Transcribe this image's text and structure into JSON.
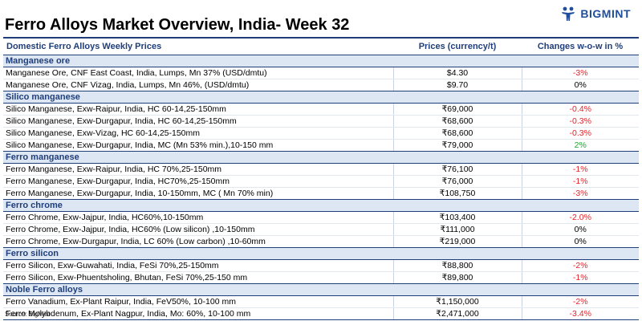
{
  "brand": {
    "name": "BIGMINT",
    "icon": "people-icon",
    "color": "#1f4e9c"
  },
  "title": "Ferro Alloys Market Overview, India- Week 32",
  "table": {
    "headers": {
      "product": "Domestic Ferro Alloys Weekly Prices",
      "price": "Prices (currency/t)",
      "change": "Changes w-o-w in %"
    },
    "groups": [
      {
        "name": "Manganese ore",
        "rows": [
          {
            "product": "Manganese Ore, CNF East Coast, India, Lumps, Mn 37% (USD/dmtu)",
            "price": "$4.30",
            "change": "-3%",
            "trend": "neg"
          },
          {
            "product": "Manganese Ore, CNF Vizag, India, Lumps, Mn 46%, (USD/dmtu)",
            "price": "$9.70",
            "change": "0%",
            "trend": "flat"
          }
        ]
      },
      {
        "name": "Silico manganese",
        "rows": [
          {
            "product": "Silico Manganese, Exw-Raipur, India, HC 60-14,25-150mm",
            "price": "₹69,000",
            "change": "-0.4%",
            "trend": "neg"
          },
          {
            "product": "Silico Manganese, Exw-Durgapur, India, HC 60-14,25-150mm",
            "price": "₹68,600",
            "change": "-0.3%",
            "trend": "neg"
          },
          {
            "product": "Silico Manganese, Exw-Vizag, HC 60-14,25-150mm",
            "price": "₹68,600",
            "change": "-0.3%",
            "trend": "neg"
          },
          {
            "product": "Silico Manganese, Exw-Durgapur, India, MC (Mn 53% min.),10-150 mm",
            "price": "₹79,000",
            "change": "2%",
            "trend": "pos"
          }
        ]
      },
      {
        "name": "Ferro manganese",
        "rows": [
          {
            "product": "Ferro Manganese, Exw-Raipur, India, HC 70%,25-150mm",
            "price": "₹76,100",
            "change": "-1%",
            "trend": "neg"
          },
          {
            "product": "Ferro Manganese, Exw-Durgapur, India, HC70%,25-150mm",
            "price": "₹76,000",
            "change": "-1%",
            "trend": "neg"
          },
          {
            "product": "Ferro Manganese, Exw-Durgapur, India, 10-150mm, MC ( Mn 70% min)",
            "price": "₹108,750",
            "change": "-3%",
            "trend": "neg"
          }
        ]
      },
      {
        "name": "Ferro chrome",
        "rows": [
          {
            "product": "Ferro Chrome, Exw-Jajpur, India, HC60%,10-150mm",
            "price": "₹103,400",
            "change": "-2.0%",
            "trend": "neg"
          },
          {
            "product": "Ferro Chrome, Exw-Jajpur, India, HC60% (Low silicon) ,10-150mm",
            "price": "₹111,000",
            "change": "0%",
            "trend": "flat"
          },
          {
            "product": "Ferro Chrome, Exw-Durgapur, India, LC 60% (Low carbon) ,10-60mm",
            "price": "₹219,000",
            "change": "0%",
            "trend": "flat"
          }
        ]
      },
      {
        "name": "Ferro silicon",
        "rows": [
          {
            "product": "Ferro Silicon, Exw-Guwahati, India, FeSi 70%,25-150mm",
            "price": "₹88,800",
            "change": "-2%",
            "trend": "neg"
          },
          {
            "product": "Ferro Silicon, Exw-Phuentsholing, Bhutan, FeSi 70%,25-150 mm",
            "price": "₹89,800",
            "change": "-1%",
            "trend": "neg"
          }
        ]
      },
      {
        "name": "Noble Ferro alloys",
        "rows": [
          {
            "product": "Ferro Vanadium, Ex-Plant Raipur, India, FeV50%, 10-100 mm",
            "price": "₹1,150,000",
            "change": "-2%",
            "trend": "neg"
          },
          {
            "product": "Ferro Molybdenum, Ex-Plant Nagpur, India, Mo: 60%, 10-100 mm",
            "price": "₹2,471,000",
            "change": "-3.4%",
            "trend": "neg"
          }
        ]
      }
    ]
  },
  "colors": {
    "accent": "#1f3e7a",
    "group_bg": "#dde7f4",
    "negative": "#e0262c",
    "positive": "#21a336"
  },
  "source": "Source: BigMint"
}
